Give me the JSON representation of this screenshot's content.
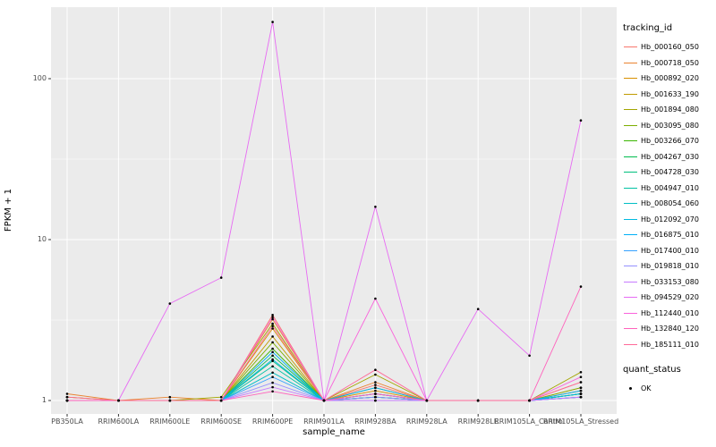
{
  "chart_data": {
    "type": "line",
    "title": "",
    "xlabel": "sample_name",
    "ylabel": "FPKM + 1",
    "y_scale": "log10",
    "y_ticks": [
      1,
      10,
      100
    ],
    "y_minor": [
      3.1623,
      31.623
    ],
    "ylim": [
      0.84,
      280
    ],
    "grid": true,
    "panel_bg": "#EBEBEB",
    "grid_color": "#FFFFFF",
    "point_color": "#000000",
    "legend_position": "right",
    "categories": [
      "PB350LA",
      "RRIM600LA",
      "RRIM600LE",
      "RRIM600SE",
      "RRIM600PE",
      "RRIM901LA",
      "RRIM928BA",
      "RRIM928LA",
      "RRIM928LE",
      "RRIM105LA_Control",
      "RRIM105LA_Stressed"
    ],
    "series": [
      {
        "name": "Hb_000160_050",
        "color": "#F8766D",
        "values": [
          1.05,
          1.0,
          1.0,
          1.0,
          3.4,
          1.0,
          1.25,
          1.0,
          1.0,
          1.0,
          1.3
        ]
      },
      {
        "name": "Hb_000718_050",
        "color": "#EA8331",
        "values": [
          1.1,
          1.0,
          1.05,
          1.0,
          3.2,
          1.0,
          1.3,
          1.0,
          1.0,
          1.0,
          1.2
        ]
      },
      {
        "name": "Hb_000892_020",
        "color": "#D89000",
        "values": [
          1.0,
          1.0,
          1.0,
          1.0,
          2.8,
          1.0,
          1.15,
          1.0,
          1.0,
          1.0,
          1.15
        ]
      },
      {
        "name": "Hb_001633_190",
        "color": "#C09B00",
        "values": [
          1.0,
          1.0,
          1.0,
          1.0,
          2.5,
          1.0,
          1.1,
          1.0,
          1.0,
          1.0,
          1.1
        ]
      },
      {
        "name": "Hb_001894_080",
        "color": "#A3A500",
        "values": [
          1.05,
          1.0,
          1.0,
          1.05,
          3.0,
          1.0,
          1.45,
          1.0,
          1.0,
          1.0,
          1.5
        ]
      },
      {
        "name": "Hb_003095_080",
        "color": "#7CAE00",
        "values": [
          1.0,
          1.0,
          1.0,
          1.0,
          2.3,
          1.0,
          1.2,
          1.0,
          1.0,
          1.0,
          1.2
        ]
      },
      {
        "name": "Hb_003266_070",
        "color": "#39B600",
        "values": [
          1.0,
          1.0,
          1.0,
          1.0,
          2.1,
          1.0,
          1.05,
          1.0,
          1.0,
          1.0,
          1.1
        ]
      },
      {
        "name": "Hb_004267_030",
        "color": "#00BB4E",
        "values": [
          1.0,
          1.0,
          1.0,
          1.0,
          1.9,
          1.0,
          1.05,
          1.0,
          1.0,
          1.0,
          1.1
        ]
      },
      {
        "name": "Hb_004728_030",
        "color": "#00BF7D",
        "values": [
          1.0,
          1.0,
          1.0,
          1.0,
          1.76,
          1.0,
          1.0,
          1.0,
          1.0,
          1.0,
          1.05
        ]
      },
      {
        "name": "Hb_004947_010",
        "color": "#00C1A3",
        "values": [
          1.0,
          1.0,
          1.0,
          1.0,
          1.63,
          1.0,
          1.0,
          1.0,
          1.0,
          1.0,
          1.05
        ]
      },
      {
        "name": "Hb_008054_060",
        "color": "#00BFC4",
        "values": [
          1.0,
          1.0,
          1.0,
          1.0,
          1.49,
          1.0,
          1.1,
          1.0,
          1.0,
          1.0,
          1.1
        ]
      },
      {
        "name": "Hb_012092_070",
        "color": "#00BAE0",
        "values": [
          1.0,
          1.0,
          1.0,
          1.0,
          1.8,
          1.0,
          1.05,
          1.0,
          1.0,
          1.0,
          1.1
        ]
      },
      {
        "name": "Hb_016875_010",
        "color": "#00B0F6",
        "values": [
          1.0,
          1.0,
          1.0,
          1.0,
          2.0,
          1.0,
          1.2,
          1.0,
          1.0,
          1.0,
          1.15
        ]
      },
      {
        "name": "Hb_017400_010",
        "color": "#35A2FF",
        "values": [
          1.0,
          1.0,
          1.0,
          1.0,
          1.4,
          1.0,
          1.1,
          1.0,
          1.0,
          1.0,
          1.05
        ]
      },
      {
        "name": "Hb_019818_010",
        "color": "#9590FF",
        "values": [
          1.0,
          1.0,
          1.0,
          1.0,
          1.29,
          1.0,
          1.05,
          1.0,
          1.0,
          1.0,
          1.05
        ]
      },
      {
        "name": "Hb_033153_080",
        "color": "#C77CFF",
        "values": [
          1.0,
          1.0,
          1.0,
          1.0,
          1.21,
          1.0,
          1.0,
          1.0,
          1.0,
          1.0,
          1.05
        ]
      },
      {
        "name": "Hb_094529_020",
        "color": "#E76BF3",
        "values": [
          1.0,
          1.0,
          4.0,
          5.8,
          225,
          1.0,
          16,
          1.0,
          3.7,
          1.9,
          55
        ]
      },
      {
        "name": "Hb_112440_010",
        "color": "#FA62DB",
        "values": [
          1.0,
          1.0,
          1.0,
          1.0,
          3.3,
          1.0,
          4.3,
          1.0,
          1.0,
          1.0,
          1.4
        ]
      },
      {
        "name": "Hb_132840_120",
        "color": "#FF62BC",
        "values": [
          1.0,
          1.0,
          1.0,
          1.0,
          1.14,
          1.0,
          1.1,
          1.0,
          1.0,
          1.0,
          5.1
        ]
      },
      {
        "name": "Hb_185111_010",
        "color": "#FF6A98",
        "values": [
          1.05,
          1.0,
          1.0,
          1.0,
          2.9,
          1.0,
          1.55,
          1.0,
          1.0,
          1.0,
          1.3
        ]
      }
    ]
  },
  "legend": {
    "tracking_title": "tracking_id",
    "quant_title": "quant_status",
    "quant_items": [
      {
        "label": "OK"
      }
    ]
  }
}
